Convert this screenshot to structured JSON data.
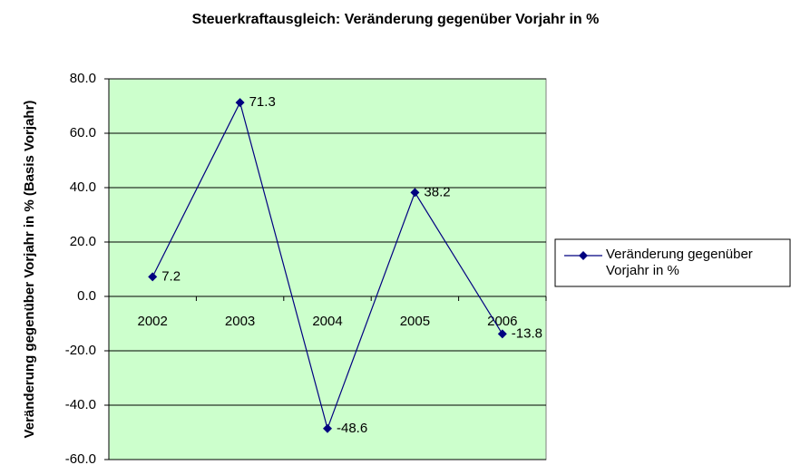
{
  "chart_data": {
    "type": "line",
    "title": "Steuerkraftausgleich: Veränderung gegenüber Vorjahr in %",
    "ylabel": "Veränderung gegenüber Vorjahr in % (Basis Vorjahr)",
    "categories": [
      "2002",
      "2003",
      "2004",
      "2005",
      "2006"
    ],
    "series": [
      {
        "name": "Veränderung gegenüber Vorjahr in %",
        "color": "#000080",
        "values": [
          7.2,
          71.3,
          -48.6,
          38.2,
          -13.8
        ]
      }
    ],
    "ylim": [
      -60,
      80
    ],
    "yticks": [
      {
        "value": -60,
        "label": "-60.0"
      },
      {
        "value": -40,
        "label": "-40.0"
      },
      {
        "value": -20,
        "label": "-20.0"
      },
      {
        "value": 0,
        "label": "0.0"
      },
      {
        "value": 20,
        "label": "20.0"
      },
      {
        "value": 40,
        "label": "40.0"
      },
      {
        "value": 60,
        "label": "60.0"
      },
      {
        "value": 80,
        "label": "80.0"
      }
    ],
    "grid": true,
    "plot_background": "#ccffcc",
    "legend": "right"
  }
}
